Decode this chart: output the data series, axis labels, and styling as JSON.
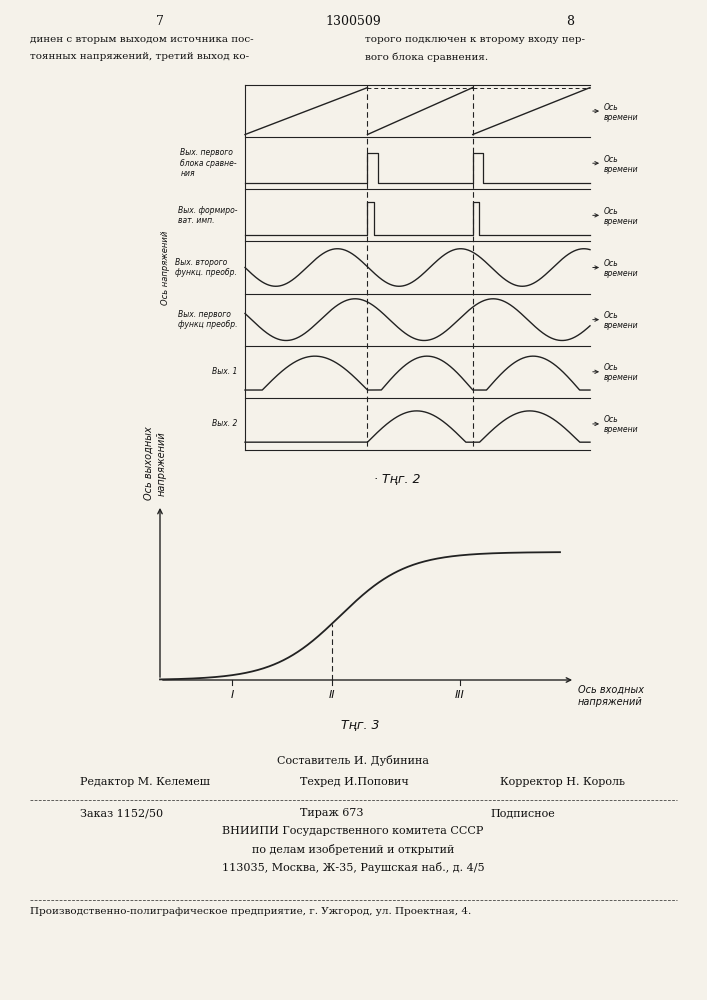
{
  "page_number_left": "7",
  "page_number_center": "1300509",
  "page_number_right": "8",
  "header_left1": "динен с вторым выходом источника пос-",
  "header_left2": "тоянных напряжений, третий выход ко-",
  "header_right1": "торого подключен к второму входу пер-",
  "header_right2": "вого блока сравнения.",
  "fig2_caption": "Τңг. 2",
  "fig3_caption": "Τңг. 3",
  "fig2_y_axis_label": "Ось напряжений",
  "fig2_row_labels": [
    "Bых. первого\nблока сравне-\nния",
    "Bых. формиро-\nват. имп.",
    "Bых. второго\nфункц. преобр.",
    "Bых. первого\nфункц преобр.",
    "Bых. 1",
    "Bых. 2"
  ],
  "fig3_xlabel": "Ось входных\nнапряжений",
  "fig3_ylabel": "Ось выходных\nнапряжений",
  "fig3_xmarks": [
    "I",
    "II",
    "III"
  ],
  "footer_line1": "Составитель И. Дубинина",
  "footer_line2": "Редактор М. Келемеш",
  "footer_line2b": "Техред И.Попович",
  "footer_line2c": "Корректор Н. Король",
  "footer_line3a": "Заказ 1152/50",
  "footer_line3b": "Тираж 673",
  "footer_line3c": "Подписное",
  "footer_line4": "ВНИИПИ Государственного комитета СССР",
  "footer_line5": "по делам изобретений и открытий",
  "footer_line6": "113035, Москва, Ж-35, Раушская наб., д. 4/5",
  "footer_line7": "Производственно-полиграфическое предприятие, г. Ужгород, ул. Проектная, 4.",
  "bg_color": "#f5f2ea",
  "line_color": "#222222",
  "text_color": "#111111"
}
